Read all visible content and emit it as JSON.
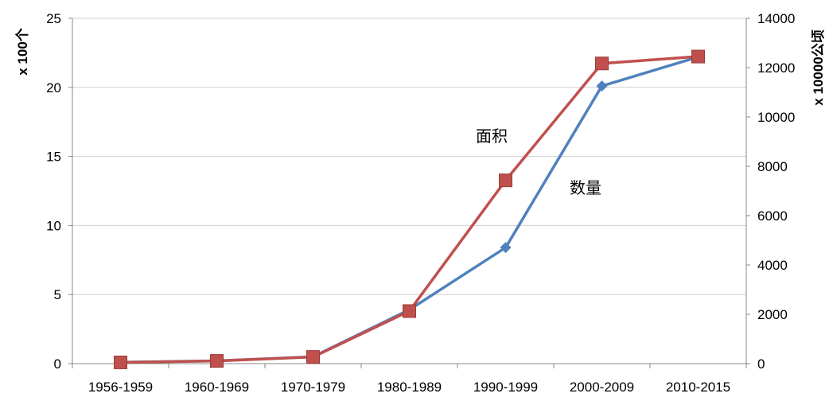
{
  "chart_data": {
    "type": "line",
    "categories": [
      "1956-1959",
      "1960-1969",
      "1970-1979",
      "1980-1989",
      "1990-1999",
      "2000-2009",
      "2010-2015"
    ],
    "series": [
      {
        "name": "数量",
        "axis": "left",
        "color": "#4F81BD",
        "marker": "diamond",
        "values": [
          0.1,
          0.2,
          0.5,
          3.9,
          8.4,
          20.1,
          22.2
        ]
      },
      {
        "name": "面积",
        "axis": "right",
        "color": "#C0504D",
        "marker": "square",
        "values": [
          50,
          110,
          270,
          2130,
          7430,
          12170,
          12450
        ]
      }
    ],
    "ylabel": "x 100个",
    "y2label": "x 10000公顷",
    "ylim": [
      0,
      25
    ],
    "yticks": [
      0,
      5,
      10,
      15,
      20,
      25
    ],
    "y2lim": [
      0,
      14000
    ],
    "y2ticks": [
      0,
      2000,
      4000,
      6000,
      8000,
      10000,
      12000,
      14000
    ],
    "grid": true,
    "annotations": [
      "面积",
      "数量"
    ]
  }
}
